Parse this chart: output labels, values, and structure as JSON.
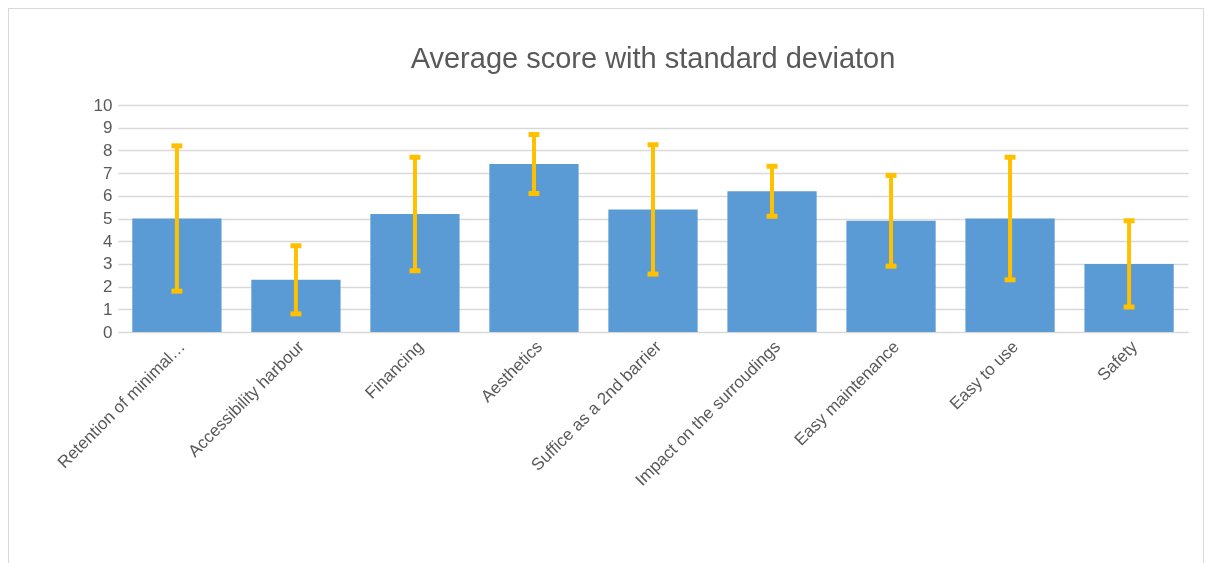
{
  "chart_data": {
    "type": "bar",
    "title": "Average score with standard deviaton",
    "categories": [
      "Retention of minimal…",
      "Accessibility harbour",
      "Financing",
      "Aesthetics",
      "Suffice as a 2nd barrier",
      "Impact on the surroudings",
      "Easy maintenance",
      "Easy to use",
      "Safety"
    ],
    "values": [
      5.0,
      2.3,
      5.2,
      7.4,
      5.4,
      6.2,
      4.9,
      5.0,
      3.0
    ],
    "errors": [
      3.2,
      1.5,
      2.5,
      1.3,
      2.85,
      1.1,
      2.0,
      2.7,
      1.9
    ],
    "color": "#5b9bd5",
    "ylim": [
      0,
      10
    ],
    "yticks": [
      0,
      1,
      2,
      3,
      4,
      5,
      6,
      7,
      8,
      9,
      10
    ],
    "grid": "y"
  }
}
